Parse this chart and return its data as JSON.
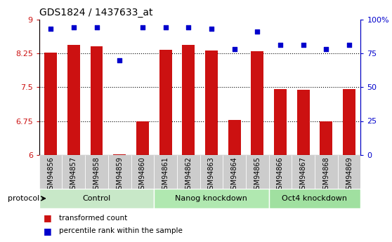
{
  "title": "GDS1824 / 1437633_at",
  "samples": [
    "GSM94856",
    "GSM94857",
    "GSM94858",
    "GSM94859",
    "GSM94860",
    "GSM94861",
    "GSM94862",
    "GSM94863",
    "GSM94864",
    "GSM94865",
    "GSM94866",
    "GSM94867",
    "GSM94868",
    "GSM94869"
  ],
  "transformed_count": [
    8.27,
    8.43,
    8.41,
    6.01,
    6.74,
    8.33,
    8.43,
    8.31,
    6.78,
    8.29,
    7.46,
    7.44,
    6.75,
    7.46
  ],
  "percentile_rank": [
    93,
    94,
    94,
    70,
    94,
    94,
    94,
    93,
    78,
    91,
    81,
    81,
    78,
    81
  ],
  "protocol_groups": [
    {
      "label": "Control",
      "start": 0,
      "end": 5,
      "color": "#c8e8c8"
    },
    {
      "label": "Nanog knockdown",
      "start": 5,
      "end": 10,
      "color": "#b0e8b0"
    },
    {
      "label": "Oct4 knockdown",
      "start": 10,
      "end": 14,
      "color": "#a0e0a0"
    }
  ],
  "bar_color": "#cc1111",
  "dot_color": "#0000cc",
  "ylim_left": [
    6.0,
    9.0
  ],
  "ylim_right": [
    0,
    100
  ],
  "yticks_left": [
    6.0,
    6.75,
    7.5,
    8.25,
    9.0
  ],
  "yticks_right": [
    0,
    25,
    50,
    75,
    100
  ],
  "ytick_labels_left": [
    "6",
    "6.75",
    "7.5",
    "8.25",
    "9"
  ],
  "ytick_labels_right": [
    "0",
    "25",
    "50",
    "75",
    "100%"
  ],
  "legend_items": [
    {
      "color": "#cc1111",
      "label": "transformed count"
    },
    {
      "color": "#0000cc",
      "label": "percentile rank within the sample"
    }
  ],
  "protocol_label": "protocol",
  "tick_area_color": "#cccccc",
  "bar_width": 0.55
}
